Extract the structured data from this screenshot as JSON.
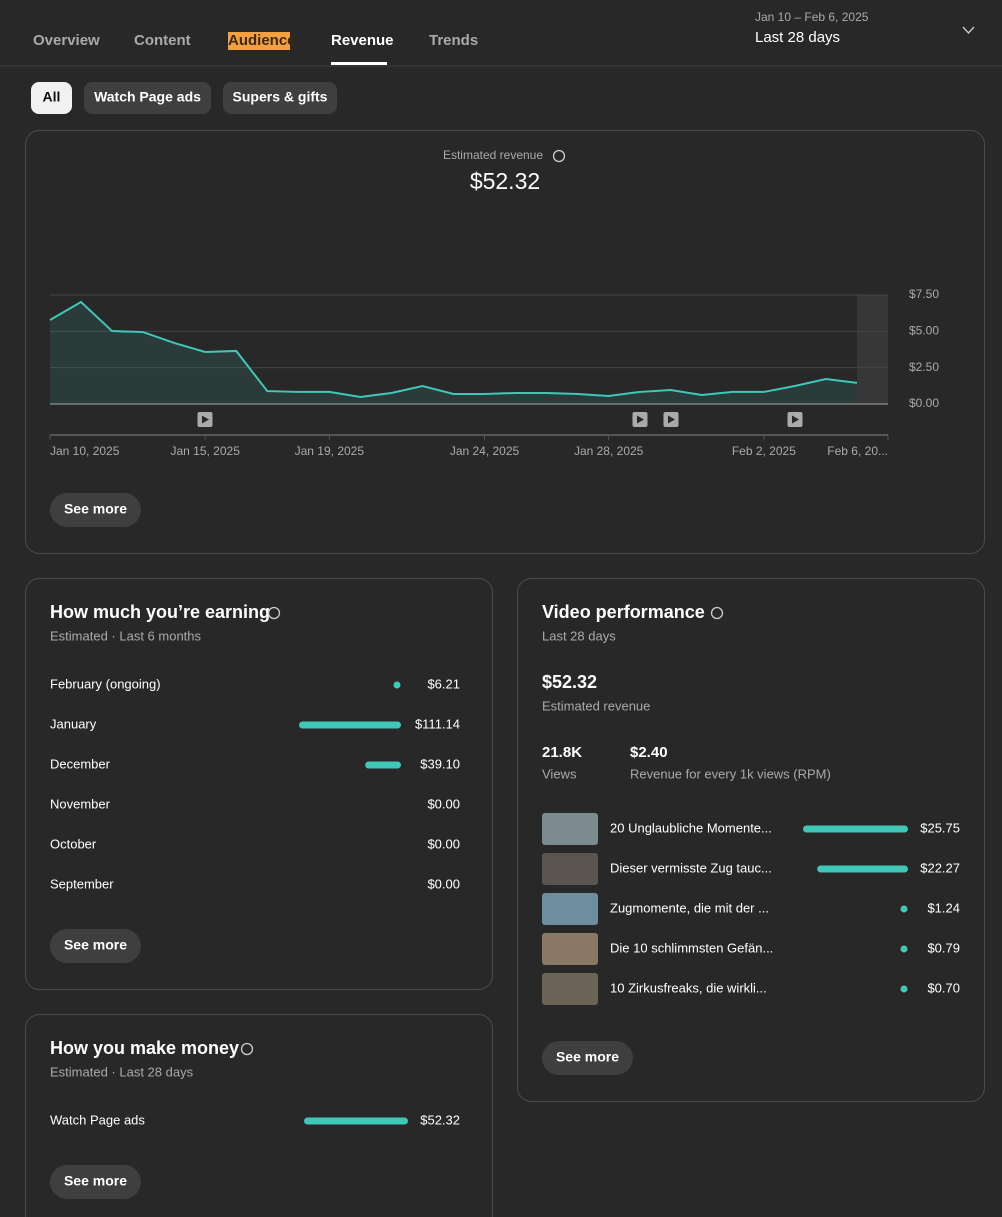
{
  "tabs": [
    "Overview",
    "Content",
    "Audience",
    "Revenue",
    "Trends"
  ],
  "date_range": {
    "dates": "Jan 10 – Feb 6, 2025",
    "period": "Last 28 days"
  },
  "filters": [
    "All",
    "Watch Page ads",
    "Supers & gifts"
  ],
  "revenue": {
    "label": "Estimated revenue",
    "total": "$52.32",
    "see_more": "See more"
  },
  "chart_data": {
    "type": "line",
    "categories": [
      "Jan 10, 2025",
      null,
      null,
      null,
      null,
      "Jan 15, 2025",
      null,
      null,
      null,
      "Jan 19, 2025",
      null,
      null,
      null,
      null,
      "Jan 24, 2025",
      null,
      null,
      null,
      "Jan 28, 2025",
      null,
      null,
      null,
      null,
      "Feb 2, 2025",
      null,
      null,
      null,
      "Feb 6, 20..."
    ],
    "values": [
      5.78,
      7.02,
      5.02,
      4.95,
      4.2,
      3.58,
      3.65,
      0.89,
      0.83,
      0.83,
      0.48,
      0.76,
      1.24,
      0.69,
      0.69,
      0.76,
      0.76,
      0.69,
      0.55,
      0.83,
      0.96,
      0.62,
      0.83,
      0.83,
      1.24,
      1.72,
      1.45,
      null
    ],
    "color": "#3ec8b8",
    "ylim": [
      0,
      7.5
    ],
    "yticks": [
      {
        "value": 0,
        "label": "$0.00"
      },
      {
        "value": 2.5,
        "label": "$2.50"
      },
      {
        "value": 5,
        "label": "$5.00"
      },
      {
        "value": 7.5,
        "label": "$7.50"
      }
    ],
    "grid": true
  },
  "earnings": {
    "title": "How much you’re earning",
    "subtitle": "Estimated · Last 6 months",
    "see_more": "See more",
    "rows": [
      {
        "label": "February (ongoing)",
        "value": 6.21,
        "value_label": "$6.21"
      },
      {
        "label": "January",
        "value": 111.14,
        "value_label": "$111.14"
      },
      {
        "label": "December",
        "value": 39.1,
        "value_label": "$39.10"
      },
      {
        "label": "November",
        "value": 0,
        "value_label": "$0.00"
      },
      {
        "label": "October",
        "value": 0,
        "value_label": "$0.00"
      },
      {
        "label": "September",
        "value": 0,
        "value_label": "$0.00"
      }
    ]
  },
  "money": {
    "title": "How you make money",
    "subtitle": "Estimated · Last 28 days",
    "see_more": "See more",
    "rows": [
      {
        "label": "Watch Page ads",
        "value": 52.32,
        "value_label": "$52.32"
      }
    ]
  },
  "video": {
    "title": "Video performance",
    "subtitle": "Last 28 days",
    "total": "$52.32",
    "total_label": "Estimated revenue",
    "see_more": "See more",
    "stats": [
      {
        "value": "21.8K",
        "label": "Views"
      },
      {
        "value": "$2.40",
        "label": "Revenue for every 1k views (RPM)"
      }
    ],
    "rows": [
      {
        "label": "20 Unglaubliche Momente...",
        "value": 25.75,
        "value_label": "$25.75"
      },
      {
        "label": "Dieser vermisste Zug tauc...",
        "value": 22.27,
        "value_label": "$22.27"
      },
      {
        "label": "Zugmomente, die mit der ...",
        "value": 1.24,
        "value_label": "$1.24"
      },
      {
        "label": "Die 10 schlimmsten Gefän...",
        "value": 0.79,
        "value_label": "$0.79"
      },
      {
        "label": "10 Zirkusfreaks, die wirkli...",
        "value": 0.7,
        "value_label": "$0.70"
      }
    ]
  }
}
